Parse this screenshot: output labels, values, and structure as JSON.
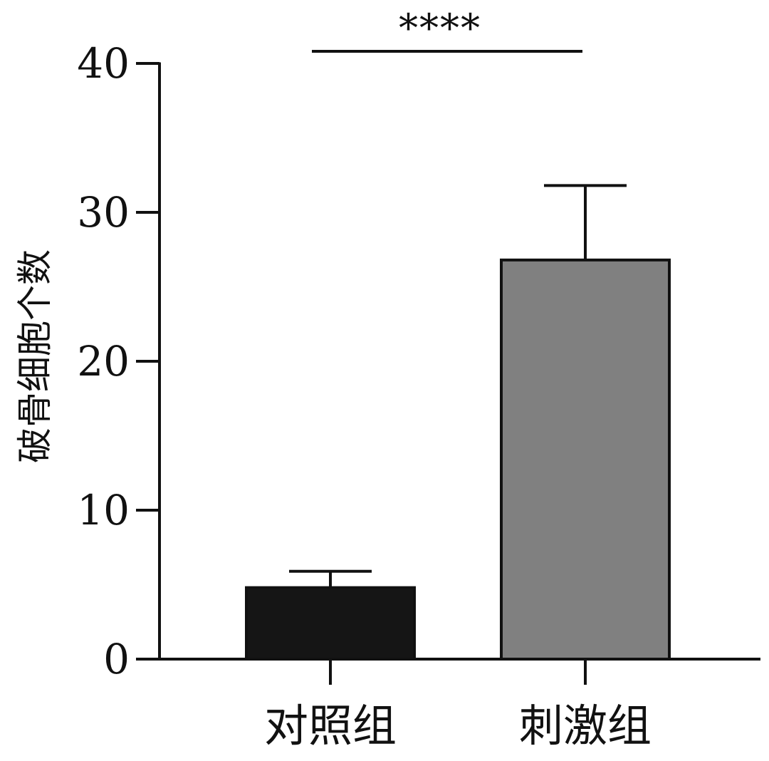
{
  "chart_data": {
    "type": "bar",
    "title": "",
    "xlabel": "",
    "ylabel": "破骨细胞个数",
    "ylim": [
      0,
      40
    ],
    "yticks": [
      0,
      10,
      20,
      30,
      40
    ],
    "categories": [
      "对照组",
      "刺激组"
    ],
    "values": [
      4.8,
      26.8
    ],
    "errors": [
      1.1,
      5.0
    ],
    "colors": [
      "#151515",
      "#808080"
    ],
    "significance": {
      "label": "****",
      "between": [
        "对照组",
        "刺激组"
      ]
    },
    "grid": false,
    "legend": "none"
  }
}
